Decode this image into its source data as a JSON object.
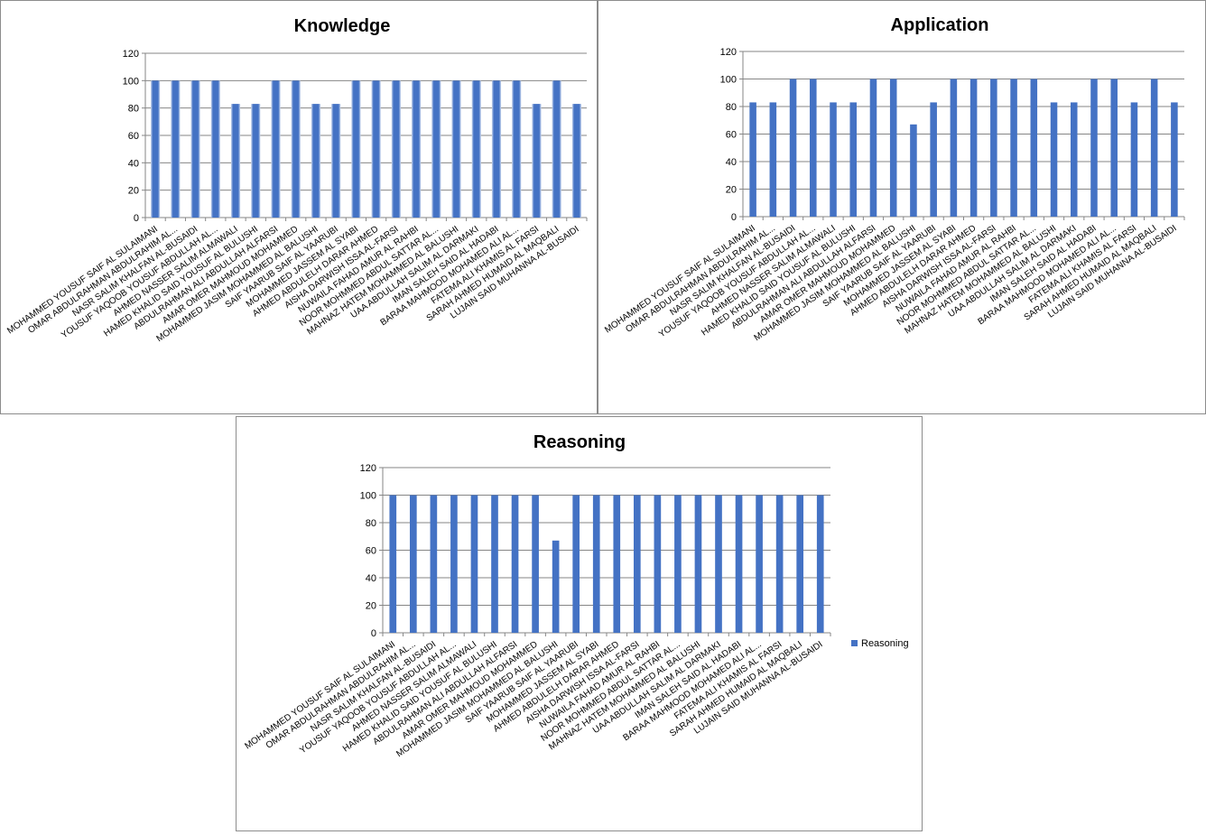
{
  "chart_data": [
    {
      "type": "bar",
      "title": "Knowledge",
      "ylim": [
        0,
        120
      ],
      "yticks": [
        0,
        20,
        40,
        60,
        80,
        100,
        120
      ],
      "grid": true,
      "legend": "none",
      "categories": [
        "MOHAMMED YOUSUF SAIF  AL SULAIMANI",
        "OMAR ABDULRAHMAN ABDULRAHIM AL...",
        "NASR SALIM KHALFAN AL-BUSAIDI",
        "YOUSUF YAQOOB YOUSUF ABDULLAH AL...",
        "AHMED NASSER SALIM ALMAWALI",
        "HAMED KHALID SAID YOUSUF AL BULUSHI",
        "ABDULRAHMAN ALI ABDULLAH ALFARSI",
        "AMAR OMER MAHMOUD MOHAMMED",
        "MOHAMMED JASIM MOHAMMED AL BALUSHI",
        "SAIF YAARUB SAIF AL YAARUBI",
        "MOHAMMED JASSEM AL SYABI",
        "AHMED ABDULELH DARAR AHMED",
        "AISHA DARWISH ISSA AL-FARSI",
        "NUWAILA FAHAD AMUR AL RAHBI",
        "NOOR MOHMMED ABDUL SATTAR  AL...",
        "MAHNAZ HATEM MOHAMMED  AL BALUSHI",
        "UAA ABDULLAH SALIM AL DARMAKI",
        "IMAN SALEH SAID AL HADABI",
        "BARAA MAHMOOD MOHAMED ALI AL...",
        "FATEMA ALI KHAMIS AL FARSI",
        "SARAH AHMED HUMAID AL MAQBALI",
        "LUJAIN SAID MUHANNA AL-BUSAIDI"
      ],
      "values": [
        100,
        100,
        100,
        100,
        83,
        83,
        100,
        100,
        83,
        83,
        100,
        100,
        100,
        100,
        100,
        100,
        100,
        100,
        100,
        83,
        100,
        83
      ],
      "bar_color": "#4472c4",
      "bar_style": "gradient"
    },
    {
      "type": "bar",
      "title": "Application",
      "ylim": [
        0,
        120
      ],
      "yticks": [
        0,
        20,
        40,
        60,
        80,
        100,
        120
      ],
      "grid": true,
      "legend": "none",
      "categories": [
        "MOHAMMED YOUSUF SAIF  AL SULAIMANI",
        "OMAR ABDULRAHMAN ABDULRAHIM AL...",
        "NASR SALIM KHALFAN AL-BUSAIDI",
        "YOUSUF YAQOOB YOUSUF ABDULLAH AL...",
        "AHMED NASSER SALIM ALMAWALI",
        "HAMED KHALID SAID YOUSUF AL BULUSHI",
        "ABDULRAHMAN ALI ABDULLAH ALFARSI",
        "AMAR OMER MAHMOUD MOHAMMED",
        "MOHAMMED JASIM MOHAMMED AL BALUSHI",
        "SAIF YAARUB SAIF AL YAARUBI",
        "MOHAMMED JASSEM AL SYABI",
        "AHMED ABDULELH DARAR AHMED",
        "AISHA DARWISH ISSA AL-FARSI",
        "NUWAILA FAHAD AMUR AL RAHBI",
        "NOOR MOHMMED ABDUL SATTAR  AL...",
        "MAHNAZ HATEM MOHAMMED  AL BALUSHI",
        "UAA ABDULLAH SALIM AL DARMAKI",
        "IMAN SALEH SAID AL HADABI",
        "BARAA MAHMOOD MOHAMED ALI AL...",
        "FATEMA ALI KHAMIS AL FARSI",
        "SARAH AHMED HUMAID AL MAQBALI",
        "LUJAIN SAID MUHANNA AL-BUSAIDI"
      ],
      "values": [
        83,
        83,
        100,
        100,
        83,
        83,
        100,
        100,
        67,
        83,
        100,
        100,
        100,
        100,
        100,
        83,
        83,
        100,
        100,
        83,
        100,
        83
      ],
      "bar_color": "#4472c4",
      "bar_style": "solid"
    },
    {
      "type": "bar",
      "title": "Reasoning",
      "ylim": [
        0,
        120
      ],
      "yticks": [
        0,
        20,
        40,
        60,
        80,
        100,
        120
      ],
      "grid": true,
      "legend": "right",
      "series_name": "Reasoning",
      "categories": [
        "MOHAMMED YOUSUF SAIF  AL SULAIMANI",
        "OMAR ABDULRAHMAN ABDULRAHIM AL...",
        "NASR SALIM KHALFAN AL-BUSAIDI",
        "YOUSUF YAQOOB YOUSUF ABDULLAH AL...",
        "AHMED NASSER SALIM ALMAWALI",
        "HAMED KHALID SAID YOUSUF AL BULUSHI",
        "ABDULRAHMAN ALI ABDULLAH ALFARSI",
        "AMAR OMER MAHMOUD MOHAMMED",
        "MOHAMMED JASIM MOHAMMED AL BALUSHI",
        "SAIF YAARUB SAIF AL YAARUBI",
        "MOHAMMED JASSEM AL SYABI",
        "AHMED ABDULELH DARAR AHMED",
        "AISHA DARWISH ISSA AL-FARSI",
        "NUWAILA FAHAD AMUR AL RAHBI",
        "NOOR MOHMMED ABDUL SATTAR  AL...",
        "MAHNAZ HATEM MOHAMMED  AL BALUSHI",
        "UAA ABDULLAH SALIM AL DARMAKI",
        "IMAN SALEH SAID AL HADABI",
        "BARAA MAHMOOD MOHAMED ALI AL...",
        "FATEMA ALI KHAMIS AL FARSI",
        "SARAH AHMED HUMAID AL MAQBALI",
        "LUJAIN SAID MUHANNA AL-BUSAIDI"
      ],
      "values": [
        100,
        100,
        100,
        100,
        100,
        100,
        100,
        100,
        67,
        100,
        100,
        100,
        100,
        100,
        100,
        100,
        100,
        100,
        100,
        100,
        100,
        100
      ],
      "bar_color": "#4472c4",
      "bar_style": "solid"
    }
  ]
}
